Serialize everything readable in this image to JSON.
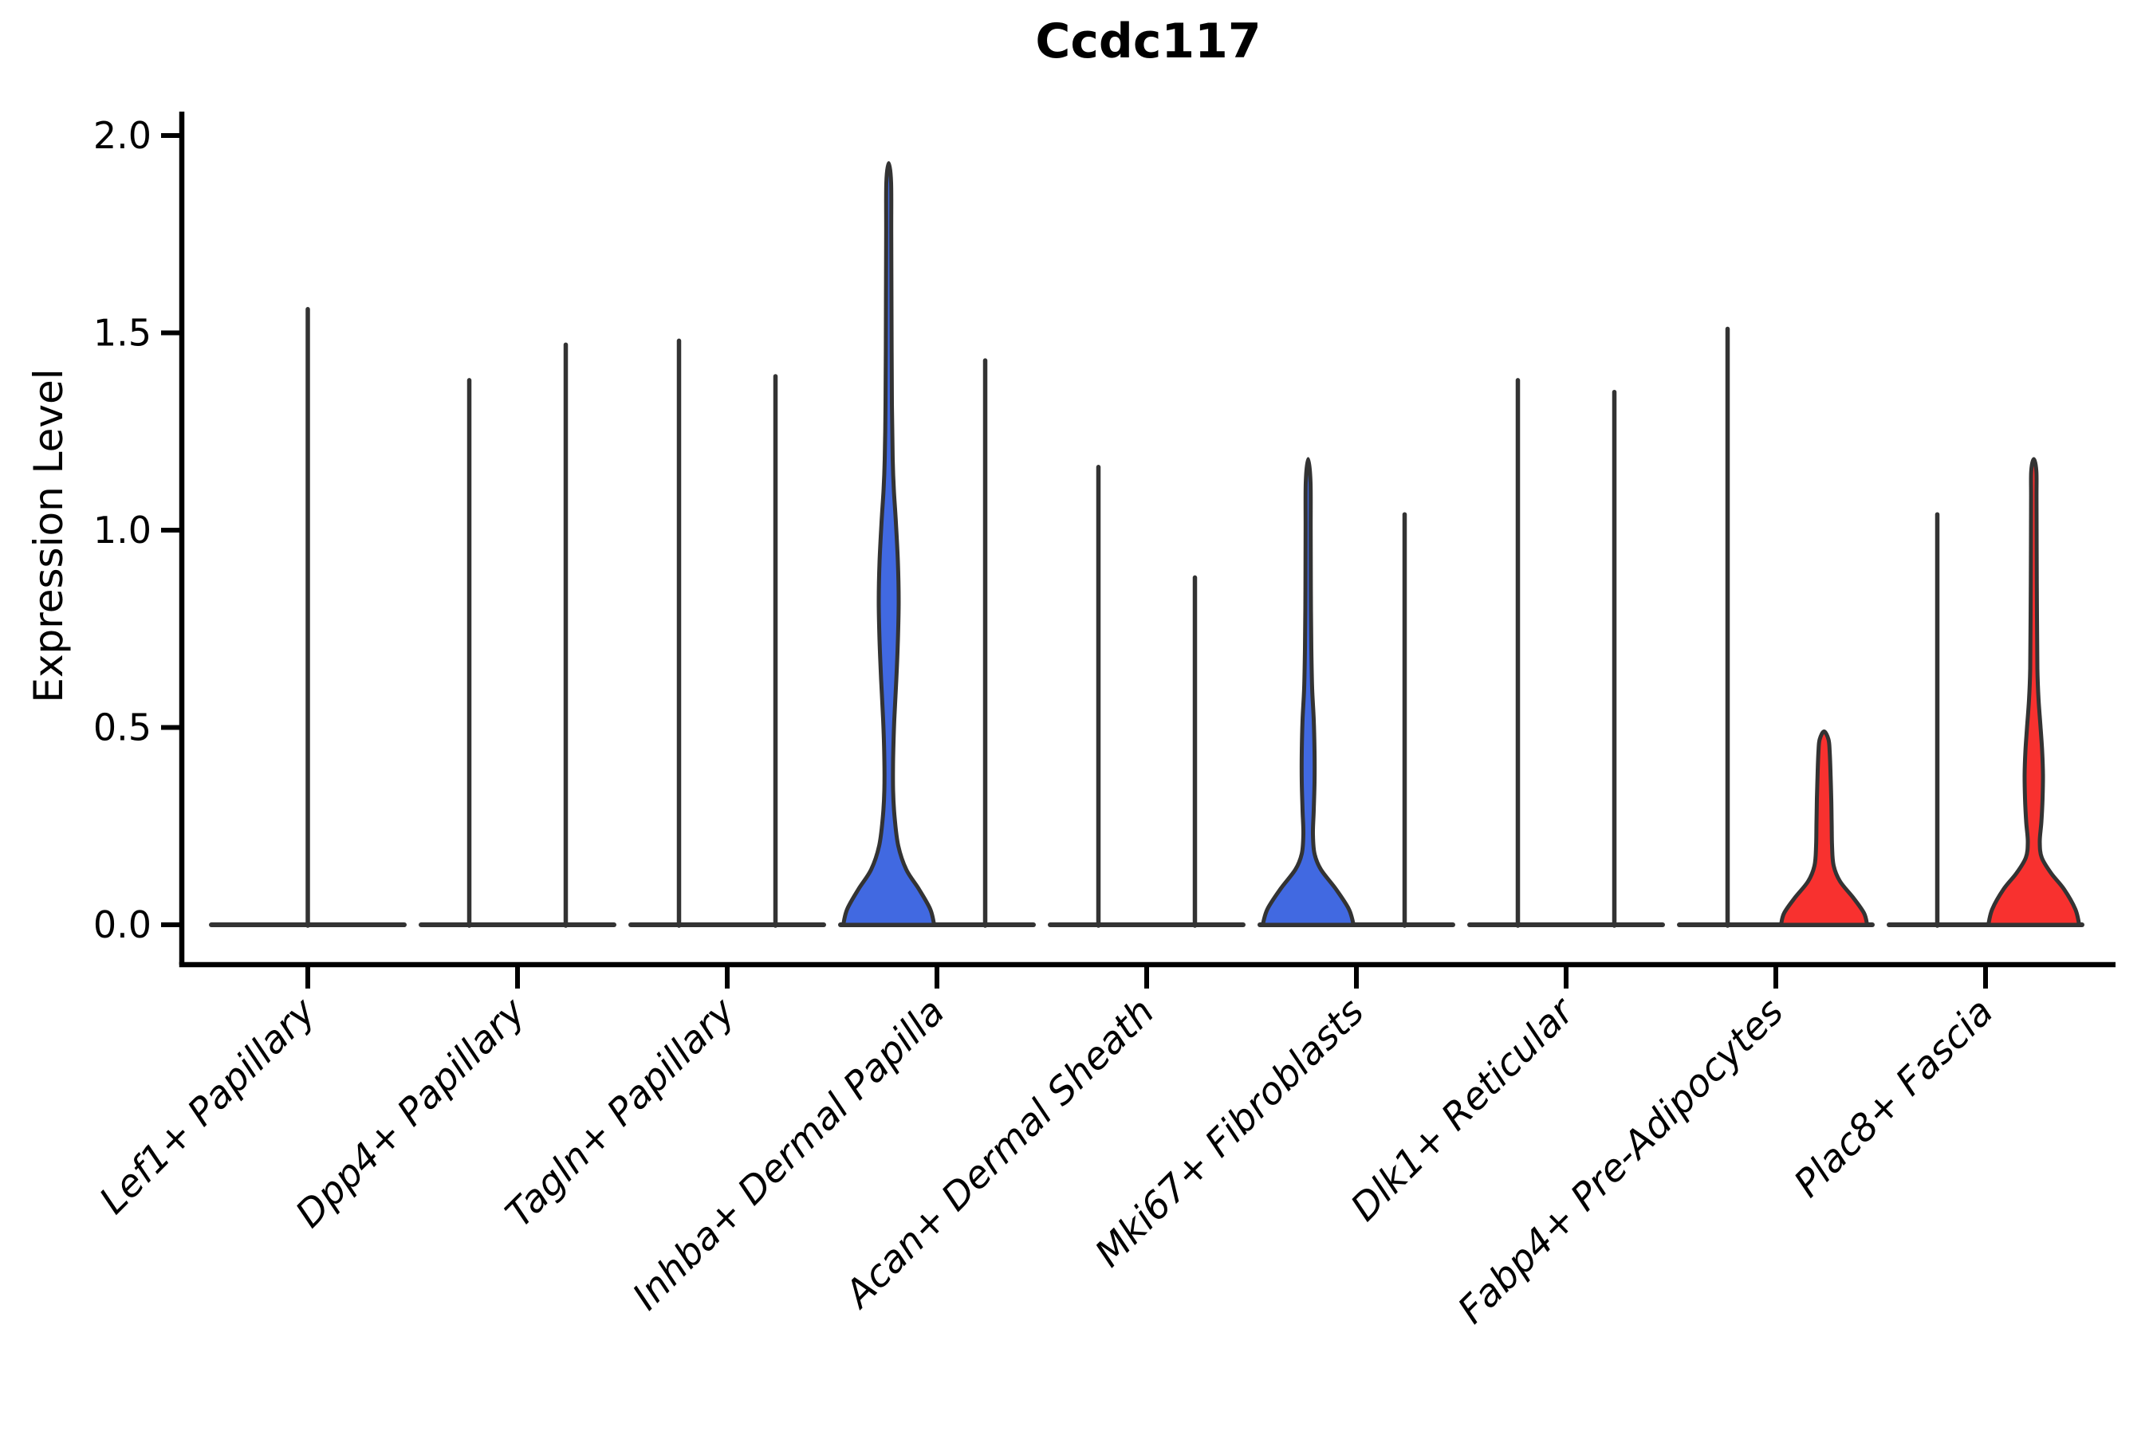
{
  "chart_data": {
    "type": "violin",
    "title": "Ccdc117",
    "ylabel": "Expression Level",
    "xlabel": "",
    "ylim": [
      0.0,
      2.0
    ],
    "grid": false,
    "legend_position": "none",
    "yticks": [
      {
        "value": 0.0,
        "label": "0.0"
      },
      {
        "value": 0.5,
        "label": "0.5"
      },
      {
        "value": 1.0,
        "label": "1.0"
      },
      {
        "value": 1.5,
        "label": "1.5"
      },
      {
        "value": 2.0,
        "label": "2.0"
      }
    ],
    "categories": [
      "Lef1+ Papillary",
      "Dpp4+ Papillary",
      "Tagln+ Papillary",
      "Inhba+ Dermal Papilla",
      "Acan+ Dermal Sheath",
      "Mki67+ Fibroblasts",
      "Dlk1+ Reticular",
      "Fabp4+ Pre-Adipocytes",
      "Plac8+ Fascia"
    ],
    "colors": {
      "violin_fill_blue": "#4169E1",
      "violin_fill_red": "#F8312F",
      "violin_outline": "#333333",
      "axis": "#000000",
      "text": "#000000",
      "background": "#ffffff"
    },
    "groups": [
      {
        "category": "Lef1+ Papillary",
        "violins": [
          {
            "position": "center",
            "max_expression": 1.56,
            "fill": "none"
          }
        ]
      },
      {
        "category": "Dpp4+ Papillary",
        "violins": [
          {
            "position": "left",
            "max_expression": 1.38,
            "fill": "none"
          },
          {
            "position": "right",
            "max_expression": 1.47,
            "fill": "none"
          }
        ]
      },
      {
        "category": "Tagln+ Papillary",
        "violins": [
          {
            "position": "left",
            "max_expression": 1.48,
            "fill": "none"
          },
          {
            "position": "right",
            "max_expression": 1.39,
            "fill": "none"
          }
        ]
      },
      {
        "category": "Inhba+ Dermal Papilla",
        "violins": [
          {
            "position": "left",
            "max_expression": 1.93,
            "fill": "#4169E1",
            "outline_profile": [
              [
                0,
                57
              ],
              [
                0.04,
                52
              ],
              [
                0.09,
                38
              ],
              [
                0.14,
                22
              ],
              [
                0.2,
                12
              ],
              [
                0.27,
                7.5
              ],
              [
                0.34,
                5.5
              ],
              [
                0.42,
                5.5
              ],
              [
                0.52,
                7
              ],
              [
                0.62,
                9.5
              ],
              [
                0.72,
                11.5
              ],
              [
                0.82,
                12.5
              ],
              [
                0.92,
                11.5
              ],
              [
                1.02,
                9
              ],
              [
                1.1,
                6.5
              ],
              [
                1.18,
                5
              ],
              [
                1.32,
                4
              ],
              [
                1.55,
                3.5
              ],
              [
                1.75,
                3.2
              ],
              [
                1.88,
                3
              ],
              [
                1.93,
                0
              ]
            ]
          },
          {
            "position": "right",
            "max_expression": 1.43,
            "fill": "none"
          }
        ]
      },
      {
        "category": "Acan+ Dermal Sheath",
        "violins": [
          {
            "position": "left",
            "max_expression": 1.16,
            "fill": "none"
          },
          {
            "position": "right",
            "max_expression": 0.88,
            "fill": "none"
          }
        ]
      },
      {
        "category": "Mki67+ Fibroblasts",
        "violins": [
          {
            "position": "left",
            "max_expression": 1.18,
            "fill": "#4169E1",
            "outline_profile": [
              [
                0,
                57
              ],
              [
                0.04,
                51
              ],
              [
                0.09,
                35
              ],
              [
                0.14,
                16
              ],
              [
                0.18,
                8
              ],
              [
                0.23,
                6
              ],
              [
                0.29,
                7
              ],
              [
                0.36,
                8
              ],
              [
                0.44,
                8
              ],
              [
                0.52,
                7
              ],
              [
                0.6,
                5
              ],
              [
                0.7,
                4
              ],
              [
                0.85,
                3.4
              ],
              [
                1.0,
                3.2
              ],
              [
                1.12,
                3
              ],
              [
                1.18,
                0
              ]
            ]
          },
          {
            "position": "right",
            "max_expression": 1.04,
            "fill": "none"
          }
        ]
      },
      {
        "category": "Dlk1+ Reticular",
        "violins": [
          {
            "position": "left",
            "max_expression": 1.38,
            "fill": "none"
          },
          {
            "position": "right",
            "max_expression": 1.35,
            "fill": "none"
          }
        ]
      },
      {
        "category": "Fabp4+ Pre-Adipocytes",
        "violins": [
          {
            "position": "left",
            "max_expression": 1.51,
            "fill": "none"
          },
          {
            "position": "right",
            "max_expression": 0.49,
            "fill": "#F8312F",
            "outline_profile": [
              [
                0,
                54
              ],
              [
                0.03,
                50
              ],
              [
                0.07,
                36
              ],
              [
                0.11,
                20
              ],
              [
                0.15,
                12
              ],
              [
                0.2,
                10
              ],
              [
                0.26,
                9.5
              ],
              [
                0.32,
                9
              ],
              [
                0.39,
                8
              ],
              [
                0.44,
                7
              ],
              [
                0.47,
                5.5
              ],
              [
                0.49,
                0
              ]
            ]
          }
        ]
      },
      {
        "category": "Plac8+ Fascia",
        "violins": [
          {
            "position": "left",
            "max_expression": 1.04,
            "fill": "none"
          },
          {
            "position": "right",
            "max_expression": 1.18,
            "fill": "#F8312F",
            "outline_profile": [
              [
                0,
                57
              ],
              [
                0.04,
                52
              ],
              [
                0.09,
                38
              ],
              [
                0.13,
                22
              ],
              [
                0.17,
                10
              ],
              [
                0.21,
                7.5
              ],
              [
                0.26,
                9.5
              ],
              [
                0.32,
                11
              ],
              [
                0.38,
                11.5
              ],
              [
                0.44,
                10.5
              ],
              [
                0.5,
                8.5
              ],
              [
                0.57,
                6
              ],
              [
                0.65,
                4.5
              ],
              [
                0.78,
                4
              ],
              [
                0.95,
                3.6
              ],
              [
                1.08,
                3.4
              ],
              [
                1.15,
                3.2
              ],
              [
                1.18,
                0
              ]
            ]
          }
        ]
      }
    ]
  }
}
